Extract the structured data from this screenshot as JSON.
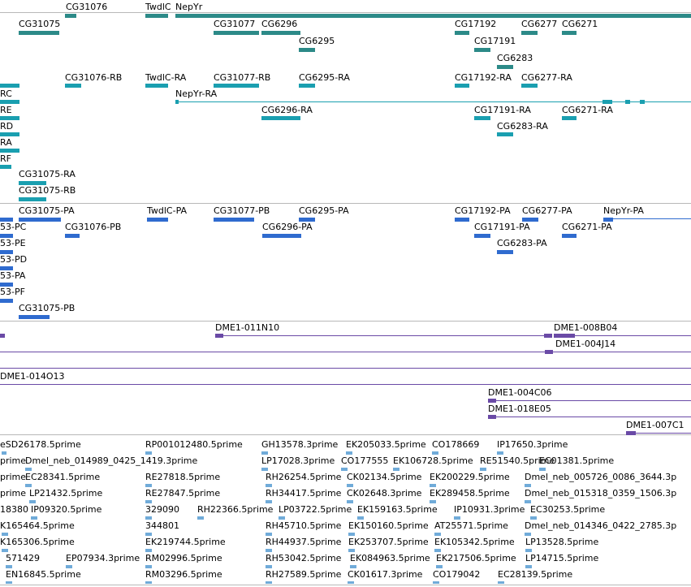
{
  "colors": {
    "gene": "#2c8a88",
    "mrna": "#1a9fb0",
    "protein": "#2f6bcf",
    "clone": "#6a4aa6",
    "est": "#70abd9"
  },
  "tracks": {
    "genes": {
      "labels": [
        "CG31076",
        "TwdlC",
        "NepYr",
        "CG31075",
        "CG31077",
        "CG6296",
        "CG17192",
        "CG6277",
        "CG6271",
        "CG6295",
        "CG17191",
        "CG6283"
      ]
    },
    "transcripts": {
      "labels": [
        "CG31076-RB",
        "TwdlC-RA",
        "CG31077-RB",
        "CG6295-RA",
        "CG17192-RA",
        "CG6277-RA",
        "NepYr-RA",
        "CG6296-RA",
        "CG17191-RA",
        "CG6271-RA",
        "CG6283-RA",
        "RC",
        "RE",
        "RD",
        "RA",
        "RF",
        "CG31075-RA",
        "CG31075-RB"
      ]
    },
    "proteins": {
      "labels": [
        "CG31075-PA",
        "TwdlC-PA",
        "CG31077-PB",
        "CG6295-PA",
        "CG17192-PA",
        "CG6277-PA",
        "NepYr-PA",
        "53-PC",
        "CG31076-PB",
        "CG6296-PA",
        "CG17191-PA",
        "CG6271-PA",
        "53-PE",
        "CG6283-PA",
        "53-PD",
        "53-PA",
        "53-PF",
        "CG31075-PB"
      ]
    },
    "clones": {
      "labels": [
        "DME1-011N10",
        "DME1-008B04",
        "DME1-004J14",
        "DME1-014O13",
        "DME1-004C06",
        "DME1-018E05",
        "DME1-007C1"
      ]
    },
    "ests": {
      "labels": [
        "eSD26178.5prime",
        "RP001012480.5prime",
        "GH13578.3prime",
        "EK205033.5prime",
        "CO178669",
        "IP17650.3prime",
        "prime",
        "Dmel_neb_014989_0425_1419.3prime",
        "LP17028.3prime",
        "CO177555",
        "EK106728.5prime",
        "RE51540.5prime",
        "EC01381.5prime",
        "prime",
        "EC28341.5prime",
        "RE27818.5prime",
        "RH26254.5prime",
        "CK02134.5prime",
        "EK200229.5prime",
        "Dmel_neb_005726_0086_3644.3p",
        "prime",
        "LP21432.5prime",
        "RE27847.5prime",
        "RH34417.5prime",
        "CK02648.3prime",
        "EK289458.5prime",
        "Dmel_neb_015318_0359_1506.3p",
        "18380",
        "IP09320.5prime",
        "329090",
        "RH22366.5prime",
        "LP03722.5prime",
        "EK159163.5prime",
        "IP10931.3prime",
        "EC30253.5prime",
        "K165464.5prime",
        "344801",
        "RH45710.5prime",
        "EK150160.5prime",
        "AT25571.5prime",
        "Dmel_neb_014346_0422_2785.3p",
        "K165306.5prime",
        "EK219744.5prime",
        "RH44937.5prime",
        "EK253707.5prime",
        "EK105342.5prime",
        "LP13528.5prime",
        "571429",
        "EP07934.3prime",
        "RM02996.5prime",
        "RH53042.5prime",
        "EK084963.5prime",
        "EK217506.5prime",
        "LP14715.5prime",
        "EN16845.5prime",
        "RM03296.5prime",
        "RH27589.5prime",
        "CK01617.3prime",
        "CO179042",
        "EC28139.5prime"
      ]
    }
  }
}
